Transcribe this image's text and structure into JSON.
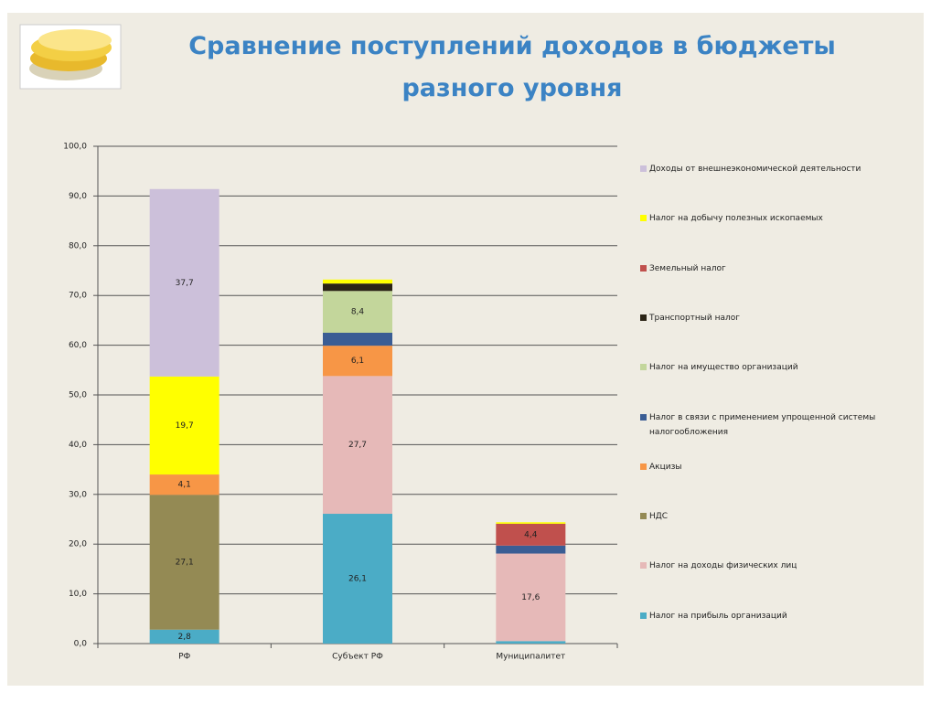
{
  "chart_data": {
    "type": "stacked_bar",
    "title": "Сравнение поступлений доходов в бюджеты разного уровня",
    "categories": [
      "РФ",
      "Субъект РФ",
      "Муниципалитет"
    ],
    "ylim": [
      0,
      100
    ],
    "yticks": [
      {
        "value": 0,
        "label": "0,0"
      },
      {
        "value": 10,
        "label": "10,0"
      },
      {
        "value": 20,
        "label": "20,0"
      },
      {
        "value": 30,
        "label": "30,0"
      },
      {
        "value": 40,
        "label": "40,0"
      },
      {
        "value": 50,
        "label": "50,0"
      },
      {
        "value": 60,
        "label": "60,0"
      },
      {
        "value": 70,
        "label": "70,0"
      },
      {
        "value": 80,
        "label": "80,0"
      },
      {
        "value": 90,
        "label": "90,0"
      },
      {
        "value": 100,
        "label": "100,0"
      }
    ],
    "grid": true,
    "legend": "right",
    "series": [
      {
        "name": "Налог на прибыль организаций",
        "color": "#4bacc6",
        "values": [
          2.8,
          26.1,
          0.5
        ],
        "value_labels": [
          "2,8",
          "26,1",
          null
        ]
      },
      {
        "name": "Налог на доходы физических лиц",
        "color": "#e6b9b8",
        "values": [
          0,
          27.7,
          17.6
        ],
        "value_labels": [
          null,
          "27,7",
          "17,6"
        ]
      },
      {
        "name": "НДС",
        "color": "#948a54",
        "values": [
          27.1,
          0,
          0
        ],
        "value_labels": [
          "27,1",
          null,
          null
        ]
      },
      {
        "name": "Акцизы",
        "color": "#f79646",
        "values": [
          4.1,
          6.1,
          0
        ],
        "value_labels": [
          "4,1",
          "6,1",
          null
        ]
      },
      {
        "name": "Налог в связи с применением упрощенной системы налогообложения",
        "color": "#3a5d94",
        "values": [
          0,
          2.6,
          1.6
        ],
        "value_labels": [
          null,
          null,
          null
        ]
      },
      {
        "name": "Налог на имущество организаций",
        "color": "#c3d69b",
        "values": [
          0,
          8.4,
          0
        ],
        "value_labels": [
          null,
          "8,4",
          null
        ]
      },
      {
        "name": "Транспортный налог",
        "color": "#2b2416",
        "values": [
          0,
          1.5,
          0
        ],
        "value_labels": [
          null,
          null,
          null
        ]
      },
      {
        "name": "Земельный налог",
        "color": "#c0504d",
        "values": [
          0,
          0,
          4.4
        ],
        "value_labels": [
          null,
          null,
          "4,4"
        ]
      },
      {
        "name": "Налог на добычу полезных ископаемых",
        "color": "#ffff00",
        "values": [
          19.7,
          0.8,
          0.3
        ],
        "value_labels": [
          "19,7",
          null,
          null
        ]
      },
      {
        "name": "Доходы от внешнеэкономической деятельности",
        "color": "#ccc0da",
        "values": [
          37.7,
          0,
          0
        ],
        "value_labels": [
          "37,7",
          null,
          null
        ]
      }
    ]
  }
}
